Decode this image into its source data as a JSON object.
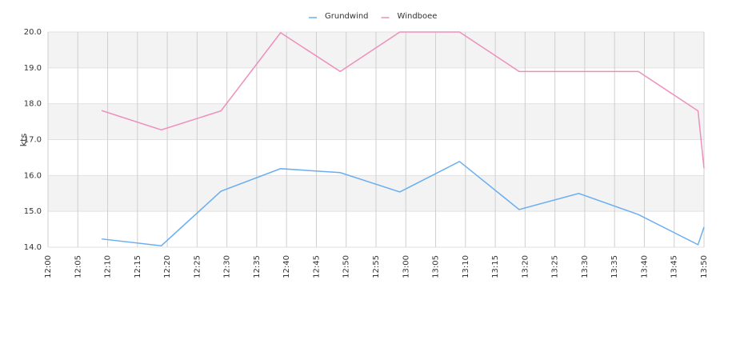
{
  "chart_data": {
    "type": "line",
    "y_label": "kts",
    "x": [
      "12:09",
      "12:19",
      "12:29",
      "12:39",
      "12:49",
      "12:59",
      "13:09",
      "13:19",
      "13:29",
      "13:39",
      "13:49",
      "13:50"
    ],
    "series": [
      {
        "name": "Grundwind",
        "color": "#6aaef0",
        "values": [
          14.23,
          14.04,
          15.56,
          16.19,
          16.08,
          15.54,
          16.39,
          15.05,
          15.5,
          14.91,
          14.07,
          14.56
        ]
      },
      {
        "name": "Windboee",
        "color": "#ee8fbb",
        "values": [
          17.81,
          17.27,
          17.8,
          19.98,
          18.9,
          20.0,
          20.0,
          18.9,
          18.9,
          18.9,
          17.8,
          16.2
        ]
      }
    ],
    "xlim": [
      "12:00",
      "13:50"
    ],
    "xticks": [
      "12:00",
      "12:05",
      "12:10",
      "12:15",
      "12:20",
      "12:25",
      "12:30",
      "12:35",
      "12:40",
      "12:45",
      "12:50",
      "12:55",
      "13:00",
      "13:05",
      "13:10",
      "13:15",
      "13:20",
      "13:25",
      "13:30",
      "13:35",
      "13:40",
      "13:45",
      "13:50"
    ],
    "ylim": [
      14,
      20
    ],
    "yticks": [
      {
        "value": 14,
        "label": "14.0"
      },
      {
        "value": 15,
        "label": "15.0"
      },
      {
        "value": 16,
        "label": "16.0"
      },
      {
        "value": 17,
        "label": "17.0"
      },
      {
        "value": 18,
        "label": "18.0"
      },
      {
        "value": 19,
        "label": "19.0"
      },
      {
        "value": 20,
        "label": "20.0"
      }
    ],
    "grid": true,
    "legend": "top"
  }
}
